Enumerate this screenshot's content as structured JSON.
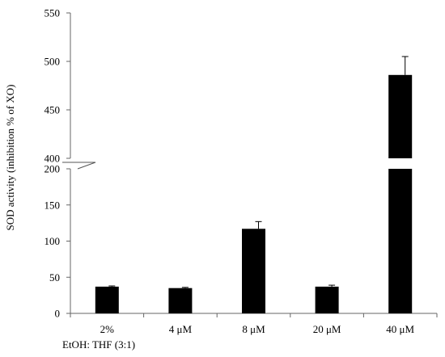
{
  "chart_data": {
    "type": "bar",
    "categories": [
      "2%",
      "4 μM",
      "8 μM",
      "20 μM",
      "40 μM"
    ],
    "category_note": "EtOH: THF (3:1)",
    "values": [
      37,
      35,
      117,
      37,
      486
    ],
    "error_bars": [
      1,
      1,
      10,
      2,
      19
    ],
    "ylabel": "SOD activity  (inhibition  % of XO)",
    "y_break": [
      200,
      400
    ],
    "y_ticks_lower": [
      0,
      50,
      100,
      150,
      200
    ],
    "y_ticks_upper": [
      400,
      450,
      500,
      550
    ],
    "ylim": [
      0,
      550
    ],
    "bar_color": "#000000",
    "grid": false
  }
}
